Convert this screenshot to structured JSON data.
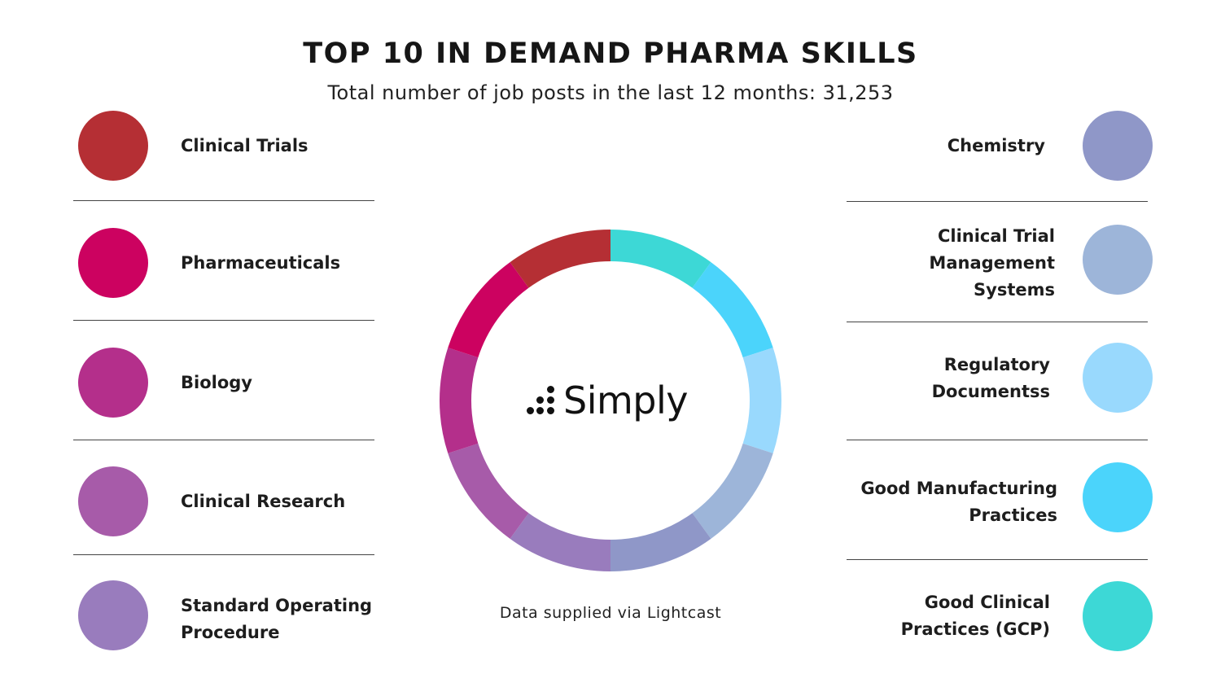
{
  "title": "TOP 10 IN DEMAND PHARMA SKILLS",
  "subtitle": "Total number of job posts in the last 12 months: 31,253",
  "footnote": "Data supplied via Lightcast",
  "logo": {
    "text": "Simply"
  },
  "chart_data": {
    "type": "pie",
    "title": "TOP 10 IN DEMAND PHARMA SKILLS",
    "style": "donut",
    "categories": [
      "Clinical Trials",
      "Pharmaceuticals",
      "Biology",
      "Clinical Research",
      "Standard Operating Procedure",
      "Chemistry",
      "Clinical Trial Management Systems",
      "Regulatory Documentss",
      "Good Manufacturing Practices",
      "Good Clinical Practices (GCP)"
    ],
    "values": [
      10,
      10,
      10,
      10,
      10,
      10,
      10,
      10,
      10,
      10
    ],
    "colors": [
      "#b52f34",
      "#cc0260",
      "#b42f8b",
      "#a75ba9",
      "#997cbd",
      "#8f97c8",
      "#9db5d9",
      "#99d9fd",
      "#4bd4fb",
      "#3dd8d6"
    ],
    "legend": [
      {
        "label_lines": [
          "Clinical Trials"
        ],
        "color": "#b52f34",
        "side": "left"
      },
      {
        "label_lines": [
          "Pharmaceuticals"
        ],
        "color": "#cc0260",
        "side": "left"
      },
      {
        "label_lines": [
          "Biology"
        ],
        "color": "#b42f8b",
        "side": "left"
      },
      {
        "label_lines": [
          "Clinical Research"
        ],
        "color": "#a75ba9",
        "side": "left"
      },
      {
        "label_lines": [
          "Standard Operating",
          "Procedure"
        ],
        "color": "#997cbd",
        "side": "left"
      },
      {
        "label_lines": [
          "Chemistry"
        ],
        "color": "#8f97c8",
        "side": "right"
      },
      {
        "label_lines": [
          "Clinical Trial",
          "Management",
          "Systems"
        ],
        "color": "#9db5d9",
        "side": "right"
      },
      {
        "label_lines": [
          "Regulatory",
          "Documentss"
        ],
        "color": "#99d9fd",
        "side": "right"
      },
      {
        "label_lines": [
          "Good Manufacturing",
          "Practices"
        ],
        "color": "#4bd4fb",
        "side": "right"
      },
      {
        "label_lines": [
          "Good Clinical",
          "Practices (GCP)"
        ],
        "color": "#3dd8d6",
        "side": "right"
      }
    ],
    "ring_order_clockwise_from_top": [
      "Good Clinical Practices (GCP)",
      "Good Manufacturing Practices",
      "Regulatory Documentss",
      "Clinical Trial Management Systems",
      "Chemistry",
      "Standard Operating Procedure",
      "Clinical Research",
      "Biology",
      "Pharmaceuticals",
      "Clinical Trials"
    ]
  }
}
